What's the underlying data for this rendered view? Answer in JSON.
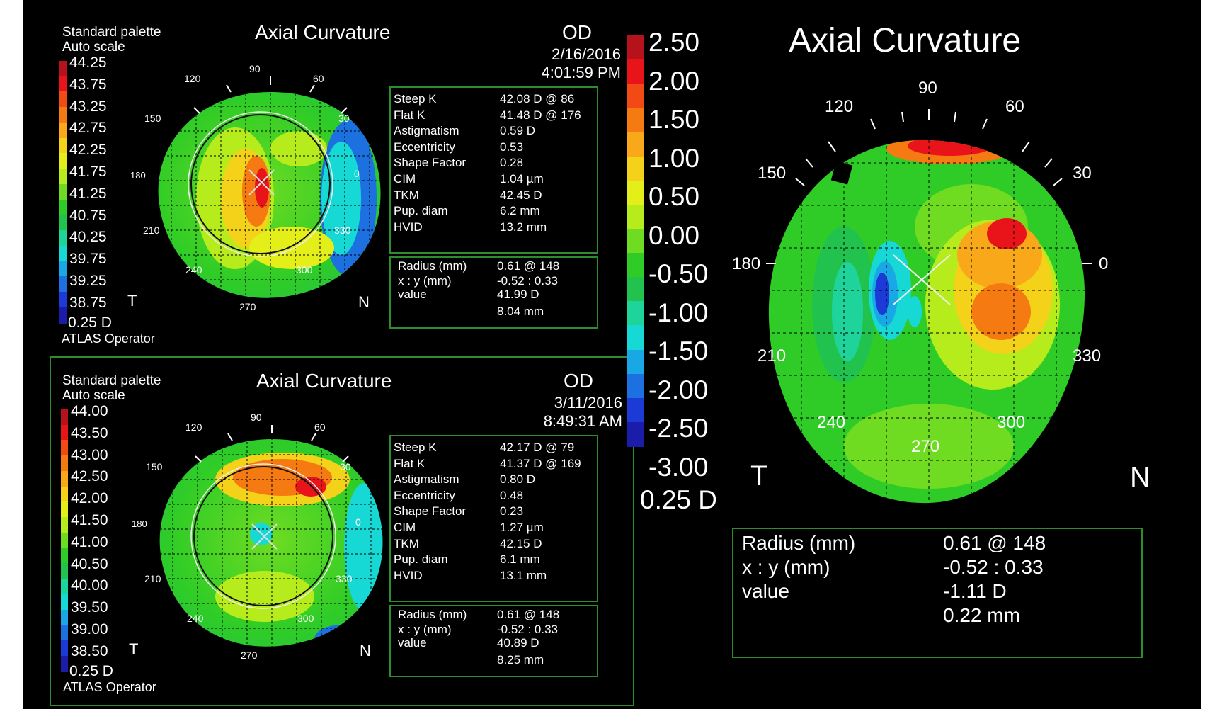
{
  "palette_colors": [
    "#b5121b",
    "#e8141a",
    "#f24a14",
    "#f57a12",
    "#f9a81a",
    "#f5d21a",
    "#e4ef1a",
    "#b6ec1c",
    "#6fdc22",
    "#2fcc27",
    "#22c24f",
    "#1fd49a",
    "#16d8d4",
    "#1aa7e6",
    "#1d70e0",
    "#1b3ad6",
    "#1c1caa"
  ],
  "top_map": {
    "palette": "Standard palette",
    "scale": "Auto scale",
    "title": "Axial Curvature",
    "eye": "OD",
    "date": "2/16/2016",
    "time": "4:01:59 PM",
    "legend": [
      "44.25",
      "43.75",
      "43.25",
      "42.75",
      "42.25",
      "41.75",
      "41.25",
      "40.75",
      "40.25",
      "39.75",
      "39.25",
      "38.75"
    ],
    "step": "0.25 D",
    "operator": "ATLAS Operator",
    "side_left": "T",
    "side_right": "N",
    "angles": {
      "a90": "90",
      "a120": "120",
      "a60": "60",
      "a150": "150",
      "a30": "30",
      "a180": "180",
      "a0": "0",
      "a210": "210",
      "a330": "330",
      "a240": "240",
      "a300": "300",
      "a270": "270"
    },
    "stats": [
      {
        "label": "Steep K",
        "value": "42.08 D @ 86"
      },
      {
        "label": "Flat K",
        "value": "41.48 D @ 176"
      },
      {
        "label": "Astigmatism",
        "value": "0.59 D"
      },
      {
        "label": "Eccentricity",
        "value": "0.53"
      },
      {
        "label": "Shape Factor",
        "value": "0.28"
      },
      {
        "label": "CIM",
        "value": "1.04 µm"
      },
      {
        "label": "TKM",
        "value": "42.45 D"
      },
      {
        "label": "Pup. diam",
        "value": "6.2 mm"
      },
      {
        "label": "HVID",
        "value": "13.2 mm"
      }
    ],
    "cursor": {
      "radius_label": "Radius (mm)",
      "radius_value": "0.61  @ 148",
      "xy_label": "x : y (mm)",
      "xy_value": "-0.52 : 0.33",
      "value_label": "value",
      "value_d": "41.99 D",
      "value_mm": "8.04 mm"
    }
  },
  "bottom_map": {
    "palette": "Standard palette",
    "scale": "Auto scale",
    "title": "Axial Curvature",
    "eye": "OD",
    "date": "3/11/2016",
    "time": "8:49:31 AM",
    "legend": [
      "44.00",
      "43.50",
      "43.00",
      "42.50",
      "42.00",
      "41.50",
      "41.00",
      "40.50",
      "40.00",
      "39.50",
      "39.00",
      "38.50"
    ],
    "step": "0.25 D",
    "operator": "ATLAS Operator",
    "side_left": "T",
    "side_right": "N",
    "angles": {
      "a90": "90",
      "a120": "120",
      "a60": "60",
      "a150": "150",
      "a30": "30",
      "a180": "180",
      "a0": "0",
      "a210": "210",
      "a330": "330",
      "a240": "240",
      "a300": "300",
      "a270": "270"
    },
    "stats": [
      {
        "label": "Steep K",
        "value": "42.17 D @ 79"
      },
      {
        "label": "Flat K",
        "value": "41.37 D @ 169"
      },
      {
        "label": "Astigmatism",
        "value": "0.80 D"
      },
      {
        "label": "Eccentricity",
        "value": "0.48"
      },
      {
        "label": "Shape Factor",
        "value": "0.23"
      },
      {
        "label": "CIM",
        "value": "1.27 µm"
      },
      {
        "label": "TKM",
        "value": "42.15 D"
      },
      {
        "label": "Pup. diam",
        "value": "6.1 mm"
      },
      {
        "label": "HVID",
        "value": "13.1 mm"
      }
    ],
    "cursor": {
      "radius_label": "Radius (mm)",
      "radius_value": "0.61  @ 148",
      "xy_label": "x : y (mm)",
      "xy_value": "-0.52 : 0.33",
      "value_label": "value",
      "value_d": "40.89 D",
      "value_mm": "8.25 mm"
    }
  },
  "difference_map": {
    "title": "Axial Curvature",
    "legend": [
      "2.50",
      "2.00",
      "1.50",
      "1.00",
      "0.50",
      "0.00",
      "-0.50",
      "-1.00",
      "-1.50",
      "-2.00",
      "-2.50",
      "-3.00"
    ],
    "step": "0.25 D",
    "side_left": "T",
    "side_right": "N",
    "angles": {
      "a90": "90",
      "a120": "120",
      "a60": "60",
      "a150": "150",
      "a30": "30",
      "a180": "180",
      "a0": "0",
      "a210": "210",
      "a330": "330",
      "a240": "240",
      "a300": "300",
      "a270": "270"
    },
    "cursor": {
      "radius_label": "Radius  (mm)",
      "radius_value": "0.61  @ 148",
      "xy_label": "x : y (mm)",
      "xy_value": "-0.52 : 0.33",
      "value_label": "value",
      "value_d": "-1.11 D",
      "value_mm": "0.22 mm"
    }
  }
}
